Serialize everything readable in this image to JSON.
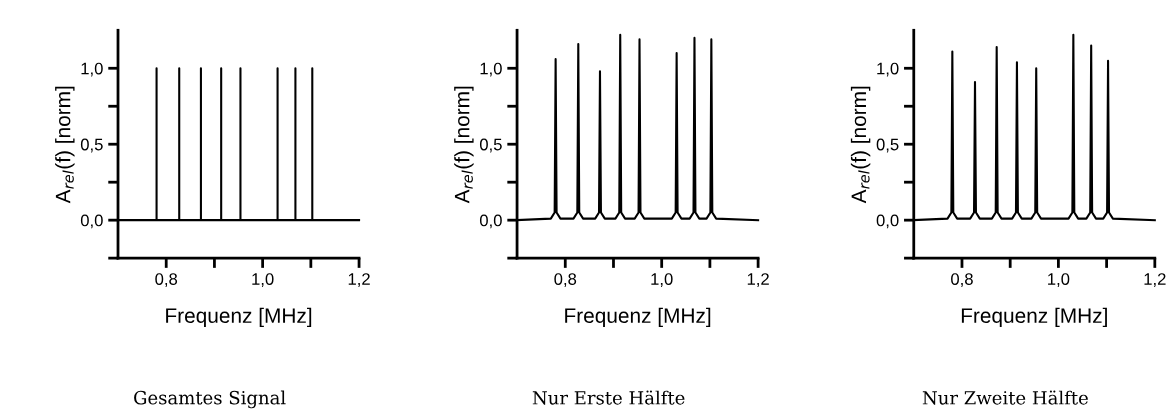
{
  "chart_data": [
    {
      "type": "line",
      "xlabel": "Frequenz [MHz]",
      "ylabel": "A$_{rel}$(f) [norm]",
      "annotations": [
        "Gesamtes Signal"
      ],
      "x": [
        0.7,
        0.78,
        0.78,
        0.78,
        0.827,
        0.827,
        0.827,
        0.872,
        0.872,
        0.872,
        0.914,
        0.914,
        0.914,
        0.954,
        0.954,
        0.954,
        1.031,
        1.031,
        1.031,
        1.068,
        1.068,
        1.068,
        1.103,
        1.103,
        1.103,
        1.2
      ],
      "series": [
        {
          "color": "#000000",
          "values": [
            0,
            0,
            1.0,
            0,
            0,
            1.0,
            0,
            0,
            1.0,
            0,
            0,
            1.0,
            0,
            0,
            1.0,
            0,
            0,
            1.0,
            0,
            0,
            1.0,
            0,
            0,
            1.0,
            0,
            0
          ]
        }
      ],
      "xlim": [
        0.7,
        1.2
      ],
      "ylim": [
        -0.25,
        1.25
      ],
      "xticks": [
        {
          "value": 0.8,
          "label": "0,8"
        },
        {
          "value": 0.9,
          "label": null
        },
        {
          "value": 1.0,
          "label": "1,0"
        },
        {
          "value": 1.1,
          "label": null
        },
        {
          "value": 1.2,
          "label": "1,2"
        }
      ],
      "yticks": [
        {
          "value": -0.25,
          "label": null
        },
        {
          "value": 0.0,
          "label": "0,0"
        },
        {
          "value": 0.25,
          "label": null
        },
        {
          "value": 0.5,
          "label": "0,5"
        },
        {
          "value": 0.75,
          "label": null
        },
        {
          "value": 1.0,
          "label": "1,0"
        }
      ]
    },
    {
      "type": "line",
      "xlabel": "Frequenz [MHz]",
      "ylabel": "A$_{rel}$(f) [norm]",
      "annotations": [
        "Nur Erste Hälfte"
      ],
      "x": [
        0.7,
        0.77,
        0.778,
        0.78,
        0.782,
        0.79,
        0.817,
        0.825,
        0.827,
        0.829,
        0.837,
        0.862,
        0.87,
        0.872,
        0.874,
        0.882,
        0.904,
        0.912,
        0.914,
        0.916,
        0.924,
        0.944,
        0.952,
        0.954,
        0.956,
        0.964,
        1.021,
        1.029,
        1.031,
        1.033,
        1.041,
        1.058,
        1.066,
        1.068,
        1.07,
        1.078,
        1.093,
        1.101,
        1.103,
        1.105,
        1.113,
        1.2
      ],
      "series": [
        {
          "color": "#000000",
          "values": [
            0,
            0.01,
            0.05,
            1.06,
            0.05,
            0.01,
            0.01,
            0.05,
            1.16,
            0.05,
            0.01,
            0.01,
            0.05,
            0.98,
            0.05,
            0.01,
            0.01,
            0.05,
            1.22,
            0.05,
            0.01,
            0.01,
            0.05,
            1.19,
            0.05,
            0.01,
            0.01,
            0.05,
            1.1,
            0.05,
            0.01,
            0.01,
            0.05,
            1.2,
            0.05,
            0.01,
            0.01,
            0.05,
            1.19,
            0.05,
            0.01,
            0
          ]
        }
      ],
      "xlim": [
        0.7,
        1.2
      ],
      "ylim": [
        -0.25,
        1.25
      ],
      "xticks": [
        {
          "value": 0.8,
          "label": "0,8"
        },
        {
          "value": 0.9,
          "label": null
        },
        {
          "value": 1.0,
          "label": "1,0"
        },
        {
          "value": 1.1,
          "label": null
        },
        {
          "value": 1.2,
          "label": "1,2"
        }
      ],
      "yticks": [
        {
          "value": -0.25,
          "label": null
        },
        {
          "value": 0.0,
          "label": "0,0"
        },
        {
          "value": 0.25,
          "label": null
        },
        {
          "value": 0.5,
          "label": "0,5"
        },
        {
          "value": 0.75,
          "label": null
        },
        {
          "value": 1.0,
          "label": "1,0"
        }
      ]
    },
    {
      "type": "line",
      "xlabel": "Frequenz [MHz]",
      "ylabel": "A$_{rel}$(f) [norm]",
      "annotations": [
        "Nur Zweite Hälfte"
      ],
      "x": [
        0.7,
        0.77,
        0.778,
        0.78,
        0.782,
        0.79,
        0.817,
        0.825,
        0.827,
        0.829,
        0.837,
        0.862,
        0.87,
        0.872,
        0.874,
        0.882,
        0.904,
        0.912,
        0.914,
        0.916,
        0.924,
        0.944,
        0.952,
        0.954,
        0.956,
        0.964,
        1.021,
        1.029,
        1.031,
        1.033,
        1.041,
        1.058,
        1.066,
        1.068,
        1.07,
        1.078,
        1.093,
        1.101,
        1.103,
        1.105,
        1.113,
        1.2
      ],
      "series": [
        {
          "color": "#000000",
          "values": [
            0,
            0.01,
            0.05,
            1.11,
            0.05,
            0.01,
            0.01,
            0.05,
            0.91,
            0.05,
            0.01,
            0.01,
            0.05,
            1.14,
            0.05,
            0.01,
            0.01,
            0.05,
            1.04,
            0.05,
            0.01,
            0.01,
            0.05,
            1.0,
            0.05,
            0.01,
            0.01,
            0.05,
            1.22,
            0.05,
            0.01,
            0.01,
            0.05,
            1.15,
            0.05,
            0.01,
            0.01,
            0.05,
            1.05,
            0.05,
            0.01,
            0
          ]
        }
      ],
      "xlim": [
        0.7,
        1.2
      ],
      "ylim": [
        -0.25,
        1.25
      ],
      "xticks": [
        {
          "value": 0.8,
          "label": "0,8"
        },
        {
          "value": 0.9,
          "label": null
        },
        {
          "value": 1.0,
          "label": "1,0"
        },
        {
          "value": 1.1,
          "label": null
        },
        {
          "value": 1.2,
          "label": "1,2"
        }
      ],
      "yticks": [
        {
          "value": -0.25,
          "label": null
        },
        {
          "value": 0.0,
          "label": "0,0"
        },
        {
          "value": 0.25,
          "label": null
        },
        {
          "value": 0.5,
          "label": "0,5"
        },
        {
          "value": 0.75,
          "label": null
        },
        {
          "value": 1.0,
          "label": "1,0"
        }
      ]
    }
  ]
}
